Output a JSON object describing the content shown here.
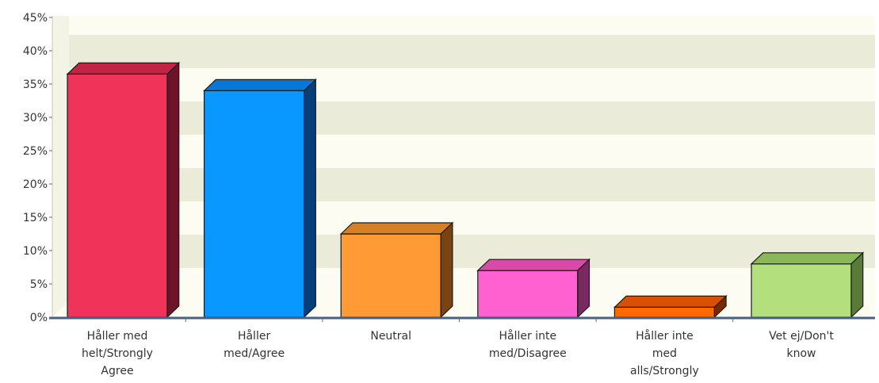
{
  "chart_data": {
    "type": "bar",
    "title": "",
    "xlabel": "",
    "ylabel": "",
    "ylim": [
      0,
      45
    ],
    "y_ticks": [
      "0%",
      "5%",
      "10%",
      "15%",
      "20%",
      "25%",
      "30%",
      "35%",
      "40%",
      "45%"
    ],
    "y_tick_values": [
      0,
      5,
      10,
      15,
      20,
      25,
      30,
      35,
      40,
      45
    ],
    "grid": "alternating horizontal bands",
    "categories": [
      [
        "Håller med",
        "helt/Strongly",
        "Agree"
      ],
      [
        "Håller",
        "med/Agree"
      ],
      [
        "Neutral"
      ],
      [
        "Håller inte",
        "med/Disagree"
      ],
      [
        "Håller inte",
        "med",
        "alls/Strongly"
      ],
      [
        "Vet ej/Don't",
        "know"
      ]
    ],
    "values": [
      36.5,
      34,
      12.5,
      7,
      1.5,
      8
    ],
    "colors": {
      "front": [
        "#f03358",
        "#0898ff",
        "#ff9a35",
        "#ff62d0",
        "#ff6a00",
        "#b3e07c"
      ],
      "top": [
        "#c02545",
        "#0878d8",
        "#d87f25",
        "#d84aa8",
        "#d85000",
        "#8ab858"
      ],
      "side": [
        "#6e1428",
        "#063e78",
        "#7a4410",
        "#7a2a60",
        "#7a2800",
        "#5a7a38"
      ]
    },
    "background": {
      "plot": "#fcfcf2",
      "band": "#ebebda",
      "axis": "#4a6080"
    }
  }
}
